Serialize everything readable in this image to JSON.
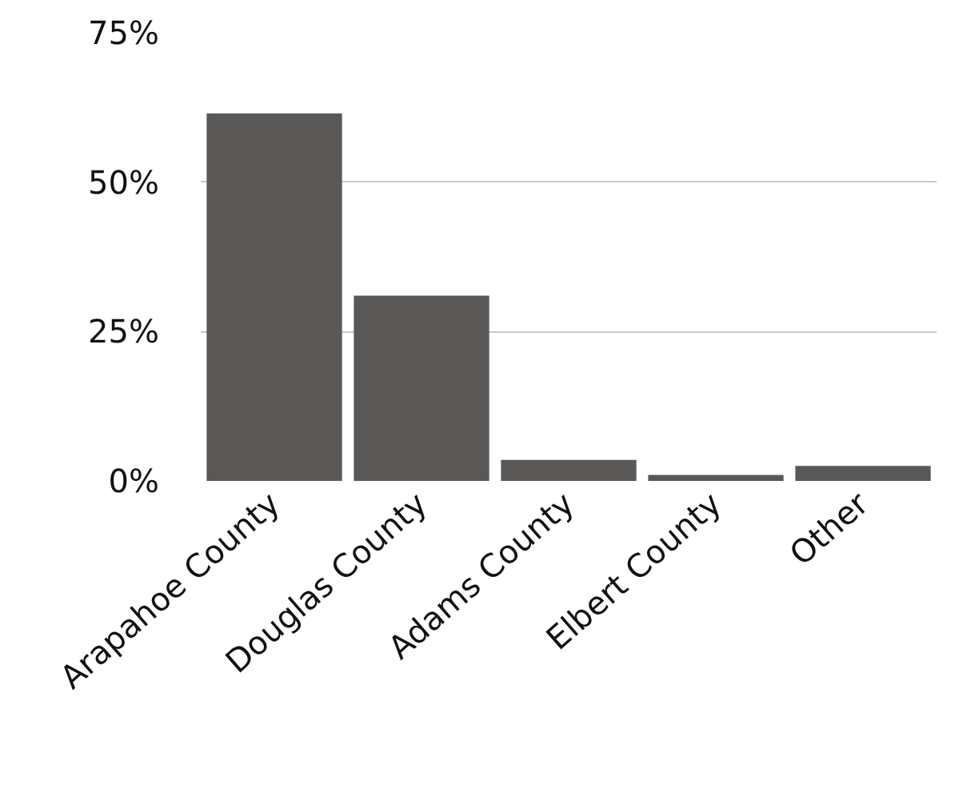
{
  "chart_data": {
    "type": "bar",
    "categories": [
      "Arapahoe County",
      "Douglas County",
      "Adams County",
      "Elbert County",
      "Other"
    ],
    "values": [
      61.5,
      31,
      3.5,
      1,
      2.5
    ],
    "color": "#595857",
    "ylim": [
      0,
      75
    ],
    "yticks": [
      {
        "value": 0,
        "label": "0%"
      },
      {
        "value": 25,
        "label": "25%"
      },
      {
        "value": 50,
        "label": "50%"
      },
      {
        "value": 75,
        "label": "75%"
      }
    ],
    "grid": "y"
  }
}
